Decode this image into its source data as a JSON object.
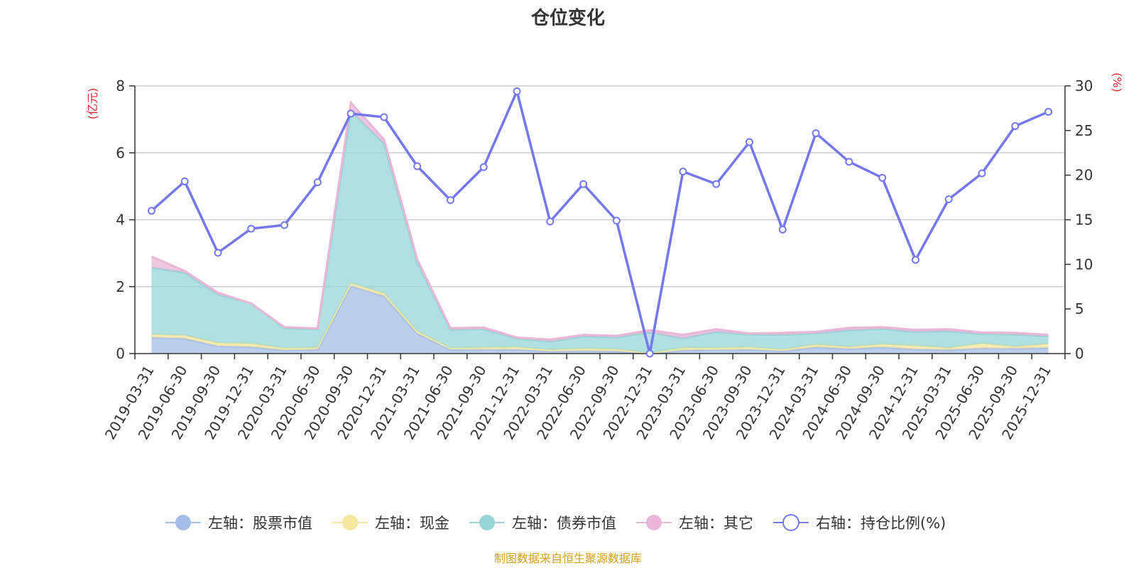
{
  "chart_data": {
    "type": "area",
    "title": "仓位变化",
    "y_left_unit": "(亿元)",
    "y_right_unit": "(%)",
    "ylim_left": [
      0,
      8
    ],
    "yticks_left": [
      0,
      2,
      4,
      6,
      8
    ],
    "ylim_right": [
      0,
      30
    ],
    "yticks_right": [
      0,
      5,
      10,
      15,
      20,
      25,
      30
    ],
    "grid": true,
    "legend_position": "bottom",
    "categories": [
      "2019-03-31",
      "2019-06-30",
      "2019-09-30",
      "2019-12-31",
      "2020-03-31",
      "2020-06-30",
      "2020-09-30",
      "2020-12-31",
      "2021-03-31",
      "2021-06-30",
      "2021-09-30",
      "2021-12-31",
      "2022-03-31",
      "2022-06-30",
      "2022-09-30",
      "2022-12-31",
      "2023-03-31",
      "2023-06-30",
      "2023-09-30",
      "2023-12-31",
      "2024-03-31",
      "2024-06-30",
      "2024-09-30",
      "2024-12-31",
      "2025-03-31",
      "2025-06-30",
      "2025-09-30",
      "2025-12-31"
    ],
    "stacked_series": [
      {
        "name": "左轴：股票市值",
        "color": "#a4bde6",
        "values": [
          0.48,
          0.45,
          0.22,
          0.2,
          0.1,
          0.12,
          2.02,
          1.72,
          0.6,
          0.12,
          0.12,
          0.12,
          0.07,
          0.08,
          0.07,
          0.0,
          0.1,
          0.11,
          0.12,
          0.08,
          0.19,
          0.14,
          0.19,
          0.13,
          0.11,
          0.16,
          0.15,
          0.17
        ]
      },
      {
        "name": "左轴：现金",
        "color": "#f6e7a0",
        "values": [
          0.09,
          0.09,
          0.1,
          0.1,
          0.06,
          0.06,
          0.08,
          0.08,
          0.07,
          0.04,
          0.06,
          0.07,
          0.04,
          0.07,
          0.06,
          0.01,
          0.07,
          0.06,
          0.07,
          0.04,
          0.08,
          0.06,
          0.09,
          0.1,
          0.06,
          0.14,
          0.06,
          0.12
        ]
      },
      {
        "name": "左轴：债券市值",
        "color": "#95d5d5",
        "values": [
          2.0,
          1.88,
          1.45,
          1.2,
          0.6,
          0.54,
          5.15,
          4.48,
          2.05,
          0.55,
          0.55,
          0.26,
          0.25,
          0.37,
          0.36,
          0.62,
          0.29,
          0.48,
          0.38,
          0.44,
          0.34,
          0.5,
          0.46,
          0.42,
          0.5,
          0.29,
          0.36,
          0.23
        ]
      },
      {
        "name": "左轴：其它",
        "color": "#e9b6d8",
        "values": [
          0.33,
          0.05,
          0.05,
          0.0,
          0.03,
          0.03,
          0.25,
          0.12,
          0.1,
          0.05,
          0.05,
          0.03,
          0.06,
          0.04,
          0.04,
          0.07,
          0.1,
          0.08,
          0.03,
          0.06,
          0.04,
          0.07,
          0.05,
          0.06,
          0.06,
          0.04,
          0.05,
          0.04
        ]
      }
    ],
    "line_series": {
      "name": "右轴：持仓比例(%)",
      "color": "#7378ee",
      "values": [
        16.0,
        19.3,
        11.3,
        14.0,
        14.4,
        19.2,
        26.9,
        26.5,
        21.0,
        17.2,
        20.9,
        29.4,
        14.8,
        19.0,
        14.9,
        0.0,
        20.4,
        19.0,
        23.7,
        13.9,
        24.7,
        21.5,
        19.7,
        10.5,
        17.3,
        20.2,
        25.5,
        27.1
      ]
    }
  },
  "source_note": "制图数据来自恒生聚源数据库"
}
